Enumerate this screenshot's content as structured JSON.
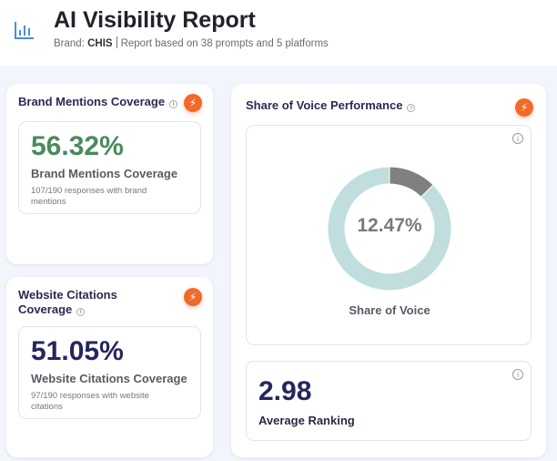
{
  "header": {
    "title": "AI Visibility Report",
    "brand_label": "Brand:",
    "brand": "CHIS",
    "description": "Report based on 38 prompts and 5 platforms",
    "icon": "bar-chart-icon"
  },
  "brand_mentions": {
    "title": "Brand Mentions Coverage",
    "value": "56.32%",
    "label": "Brand Mentions Coverage",
    "detail": "107/190 responses with brand mentions",
    "color": "#4a8a5e"
  },
  "website_citations": {
    "title": "Website Citations Coverage",
    "value": "51.05%",
    "label": "Website Citations Coverage",
    "detail": "97/190 responses with website citations",
    "color": "#26265e"
  },
  "share_of_voice": {
    "title": "Share of Voice Performance",
    "value": "12.47%",
    "percent": 12.47,
    "label": "Share of Voice",
    "colors": {
      "brand": "#808080",
      "rest": "#bfdedd"
    }
  },
  "average_ranking": {
    "value": "2.98",
    "label": "Average Ranking"
  },
  "accent": "#f26a2a"
}
